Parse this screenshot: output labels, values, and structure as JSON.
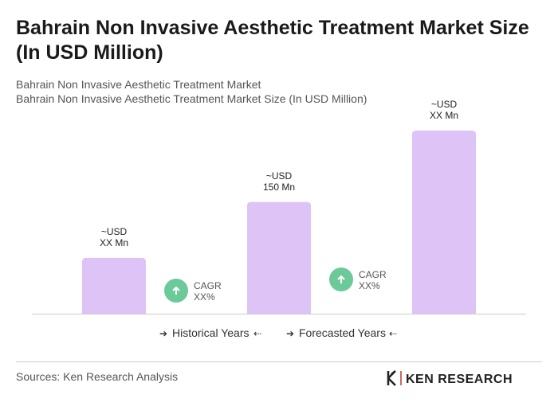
{
  "chart_data": {
    "type": "bar",
    "title": "Bahrain Non Invasive Aesthetic Treatment Market Size (In USD Million)",
    "subtitle": [
      "Bahrain Non Invasive Aesthetic Treatment Market",
      "Bahrain Non Invasive Aesthetic Treatment Market Size (In USD Million)"
    ],
    "values": [
      75,
      150,
      246
    ],
    "value_labels": [
      [
        "~USD",
        "XX Mn"
      ],
      [
        "~USD",
        "150 Mn"
      ],
      [
        "~USD",
        "XX Mn"
      ]
    ],
    "color": "#dec3f7",
    "annotations": [
      {
        "label": "CAGR",
        "value": "XX%"
      },
      {
        "label": "CAGR",
        "value": "XX%"
      }
    ],
    "annotation_color": "#6cc99a",
    "legend": [
      "Historical Years",
      "Forecasted Years"
    ]
  },
  "footer": {
    "source": "Sources: Ken Research Analysis",
    "logo": "KEN RESEARCH"
  }
}
